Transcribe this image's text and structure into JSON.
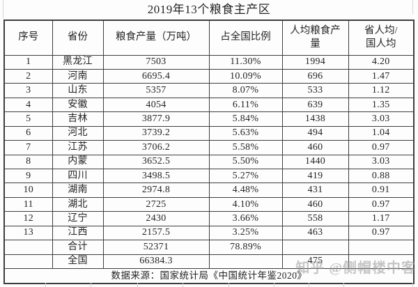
{
  "title": "2019年13个粮食主产区",
  "columns": [
    {
      "label": "序号"
    },
    {
      "label": "省份"
    },
    {
      "label": "粮食产量（万吨）"
    },
    {
      "label": "占全国比例"
    },
    {
      "label": "人均粮食产\n量"
    },
    {
      "label": "省人均/\n国人均"
    }
  ],
  "rows": [
    {
      "seq": "1",
      "province": "黑龙江",
      "production": "7503",
      "share": "11.30%",
      "per_capita": "1994",
      "ratio": "4.20"
    },
    {
      "seq": "2",
      "province": "河南",
      "production": "6695.4",
      "share": "10.09%",
      "per_capita": "696",
      "ratio": "1.47"
    },
    {
      "seq": "3",
      "province": "山东",
      "production": "5357",
      "share": "8.07%",
      "per_capita": "533",
      "ratio": "1.12"
    },
    {
      "seq": "4",
      "province": "安徽",
      "production": "4054",
      "share": "6.11%",
      "per_capita": "639",
      "ratio": "1.35"
    },
    {
      "seq": "5",
      "province": "吉林",
      "production": "3877.9",
      "share": "5.84%",
      "per_capita": "1438",
      "ratio": "3.03"
    },
    {
      "seq": "6",
      "province": "河北",
      "production": "3739.2",
      "share": "5.63%",
      "per_capita": "494",
      "ratio": "1.04"
    },
    {
      "seq": "7",
      "province": "江苏",
      "production": "3706.2",
      "share": "5.58%",
      "per_capita": "460",
      "ratio": "0.97"
    },
    {
      "seq": "8",
      "province": "内蒙",
      "production": "3652.5",
      "share": "5.50%",
      "per_capita": "1440",
      "ratio": "3.03"
    },
    {
      "seq": "9",
      "province": "四川",
      "production": "3498.5",
      "share": "5.27%",
      "per_capita": "419",
      "ratio": "0.88"
    },
    {
      "seq": "10",
      "province": "湖南",
      "production": "2974.8",
      "share": "4.48%",
      "per_capita": "431",
      "ratio": "0.91"
    },
    {
      "seq": "11",
      "province": "湖北",
      "production": "2725",
      "share": "4.10%",
      "per_capita": "460",
      "ratio": "0.97"
    },
    {
      "seq": "12",
      "province": "辽宁",
      "production": "2430",
      "share": "3.66%",
      "per_capita": "558",
      "ratio": "1.17"
    },
    {
      "seq": "13",
      "province": "江西",
      "production": "2157.5",
      "share": "3.25%",
      "per_capita": "463",
      "ratio": "0.97"
    },
    {
      "seq": "",
      "province": "合计",
      "production": "52371",
      "share": "78.89%",
      "per_capita": "",
      "ratio": ""
    },
    {
      "seq": "",
      "province": "全国",
      "production": "66384.3",
      "share": "",
      "per_capita": "475",
      "ratio": ""
    }
  ],
  "footer": {
    "source": "数据来源：国家统计局《中国统计年鉴2020》"
  },
  "watermark": "知乎 @侧帽楼中客",
  "colors": {
    "border": "#3d3d3d",
    "text": "#242424",
    "background": "#fdfdfd",
    "watermark_gray": "#989898"
  }
}
